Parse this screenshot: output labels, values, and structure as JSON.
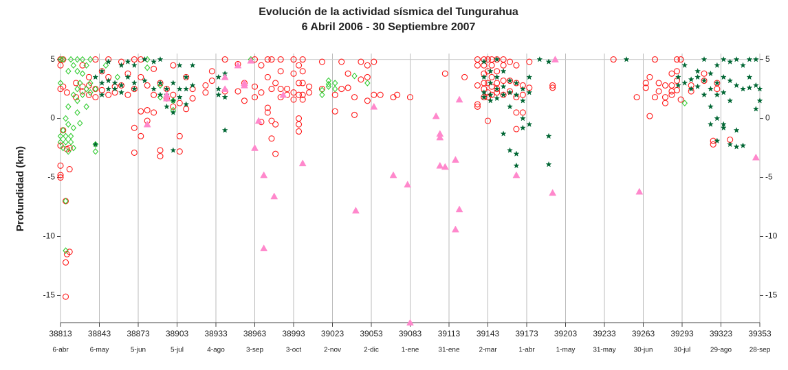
{
  "chart_data": {
    "type": "scatter",
    "title": "Evolución de la actividad sísmica del Tungurahua",
    "subtitle": "6 Abril 2006 - 30 Septiembre 2007",
    "ylabel": "Profundidad (km)",
    "xlim": [
      38813,
      39353
    ],
    "xticks": [
      38813,
      38843,
      38873,
      38903,
      38933,
      38963,
      38993,
      39023,
      39053,
      39083,
      39113,
      39143,
      39173,
      39203,
      39233,
      39263,
      39293,
      39323,
      39353
    ],
    "xtick_dates": [
      "6-abr",
      "6-may",
      "5-jun",
      "5-jul",
      "4-ago",
      "3-sep",
      "3-oct",
      "2-nov",
      "2-dic",
      "1-ene",
      "31-ene",
      "2-mar",
      "1-abr",
      "1-may",
      "31-may",
      "30-jun",
      "30-jul",
      "29-ago",
      "28-sep"
    ],
    "ylim": [
      -17.3,
      5.5
    ],
    "yticks": [
      5,
      0,
      -5,
      -10,
      -15
    ],
    "grid_x": true,
    "series": [
      {
        "color": "#ff1a1a",
        "marker": "circle",
        "x": [
          38813,
          38813,
          38813,
          38813,
          38813,
          38813,
          38813,
          38815,
          38815,
          38815,
          38817,
          38817,
          38817,
          38818,
          38818,
          38818,
          38820,
          38820,
          38820,
          38825,
          38825,
          38830,
          38830,
          38830,
          38835,
          38835,
          38835,
          38840,
          38840,
          38840,
          38845,
          38845,
          38850,
          38850,
          38850,
          38855,
          38855,
          38860,
          38860,
          38865,
          38865,
          38870,
          38870,
          38870,
          38870,
          38875,
          38875,
          38875,
          38875,
          38880,
          38880,
          38880,
          38885,
          38885,
          38885,
          38890,
          38890,
          38890,
          38895,
          38895,
          38900,
          38900,
          38900,
          38905,
          38905,
          38905,
          38910,
          38910,
          38915,
          38915,
          38925,
          38925,
          38930,
          38930,
          38940,
          38940,
          38950,
          38950,
          38955,
          38955,
          38963,
          38963,
          38963,
          38968,
          38968,
          38968,
          38973,
          38973,
          38973,
          38973,
          38976,
          38976,
          38976,
          38976,
          38979,
          38979,
          38979,
          38983,
          38983,
          38983,
          38983,
          38988,
          38988,
          38993,
          38993,
          38993,
          38993,
          38997,
          38997,
          38997,
          38997,
          38997,
          38997,
          39000,
          39000,
          39000,
          39000,
          39000,
          39005,
          39005,
          39015,
          39015,
          39025,
          39025,
          39030,
          39030,
          39035,
          39035,
          39040,
          39040,
          39045,
          39045,
          39050,
          39050,
          39050,
          39055,
          39055,
          39060,
          39070,
          39073,
          39083,
          39110,
          39125,
          39135,
          39135,
          39135,
          39135,
          39135,
          39140,
          39140,
          39140,
          39140,
          39140,
          39140,
          39143,
          39143,
          39143,
          39143,
          39143,
          39143,
          39146,
          39146,
          39146,
          39146,
          39146,
          39150,
          39150,
          39150,
          39150,
          39150,
          39155,
          39155,
          39155,
          39155,
          39160,
          39160,
          39160,
          39165,
          39165,
          39165,
          39165,
          39165,
          39170,
          39170,
          39170,
          39175,
          39175,
          39193,
          39193,
          39240,
          39258,
          39265,
          39265,
          39268,
          39268,
          39272,
          39272,
          39275,
          39275,
          39280,
          39280,
          39280,
          39285,
          39285,
          39285,
          39285,
          39289,
          39289,
          39289,
          39289,
          39292,
          39292,
          39300,
          39300,
          39310,
          39310,
          39317,
          39317,
          39320,
          39320,
          39330
        ],
        "values": [
          5,
          4.5,
          2.5,
          -4,
          -5,
          -4.8,
          -2.3,
          5,
          2.7,
          -1,
          -7,
          -12.2,
          -15.1,
          -11.5,
          2.2,
          -2.6,
          -2.5,
          -4.3,
          -11.3,
          3,
          1.8,
          2.7,
          2.3,
          4.5,
          2,
          3.5,
          2.8,
          5,
          2.5,
          1.8,
          4,
          2.4,
          5,
          3.5,
          2,
          2.7,
          2.2,
          4.8,
          2.8,
          3.8,
          2,
          5,
          2.5,
          -2.9,
          -0.8,
          5,
          3.5,
          -1.5,
          0.6,
          2.8,
          0.7,
          -0.2,
          4.2,
          2,
          0.5,
          -2.7,
          -3.2,
          3,
          2.5,
          1.7,
          1,
          2,
          4.5,
          -1.5,
          -2.8,
          1.3,
          0.8,
          3.5,
          2.5,
          1.7,
          2.2,
          2.8,
          4,
          3.2,
          5,
          2.3,
          4.6,
          2.3,
          3,
          1.5,
          5,
          2.7,
          1.8,
          4.5,
          -0.3,
          2.2,
          5,
          3.5,
          0.5,
          0.9,
          5,
          2.5,
          -0.2,
          -1.7,
          3,
          -0.5,
          -3,
          5,
          4,
          2.5,
          1.8,
          2.5,
          2,
          5,
          3.8,
          2.2,
          1.6,
          4.5,
          3,
          2,
          0,
          -0.5,
          -1.1,
          5,
          4,
          3,
          2,
          1.6,
          2.7,
          2.2,
          2.5,
          4.8,
          2,
          0.6,
          4.8,
          2.5,
          3.8,
          2.6,
          0.3,
          1.8,
          3.3,
          4.8,
          4.5,
          3.5,
          1.5,
          4.8,
          2,
          2,
          1.8,
          2,
          1.8,
          3.8,
          3.5,
          5,
          4.5,
          2.8,
          1.2,
          1,
          5,
          4.5,
          3.8,
          3,
          2.5,
          1.8,
          5,
          4,
          3,
          2.2,
          1.8,
          -0.2,
          5,
          4.5,
          3.5,
          2.7,
          2,
          5,
          4,
          3,
          2.5,
          2.2,
          5,
          4.5,
          3.2,
          2,
          4.8,
          3.2,
          2.3,
          4.5,
          3,
          1.8,
          0.5,
          -0.9,
          2.8,
          2,
          0.5,
          4.8,
          2.6,
          2.8,
          2.6,
          5,
          1.8,
          3,
          2.6,
          0.2,
          3.5,
          5,
          1.8,
          3,
          2.3,
          1.3,
          1.8,
          2.8,
          3.8,
          2.8,
          2.3,
          2,
          5,
          4,
          3.2,
          2.4,
          5,
          1.6,
          2.8,
          2.3,
          3.8,
          3.2,
          -2.2,
          -1.9,
          2.5,
          3,
          -1.8
        ]
      },
      {
        "color": "#33cc33",
        "marker": "diamond",
        "x": [
          38813,
          38813,
          38813,
          38813,
          38815,
          38815,
          38815,
          38817,
          38817,
          38817,
          38817,
          38817,
          38819,
          38819,
          38819,
          38819,
          38821,
          38821,
          38821,
          38823,
          38823,
          38823,
          38823,
          38826,
          38826,
          38826,
          38826,
          38826,
          38828,
          38828,
          38830,
          38830,
          38830,
          38833,
          38833,
          38833,
          38836,
          38836,
          38836,
          38840,
          38840,
          38840,
          38848,
          38857,
          38880,
          38880,
          38890,
          38890,
          38900,
          38900,
          38960,
          39015,
          39015,
          39020,
          39020,
          39020,
          39025,
          39025,
          39040,
          39050,
          39295
        ],
        "values": [
          5,
          3,
          -1.5,
          -2,
          5,
          -1,
          -2.5,
          0,
          -1.5,
          -2,
          -7,
          -11.2,
          4,
          1,
          -0.5,
          -2.8,
          5,
          -1.5,
          -2,
          4.5,
          2,
          -0.8,
          -2.5,
          5,
          4,
          2.5,
          1.5,
          0.5,
          3,
          -0.4,
          5,
          3.8,
          2,
          4.5,
          2.5,
          1,
          5,
          3,
          2.2,
          2.5,
          -2.8,
          -2.2,
          4.5,
          3.5,
          5,
          4.3,
          2.8,
          1.8,
          0.7,
          1.5,
          5,
          2,
          2.4,
          2.7,
          2.9,
          3.2,
          2.5,
          3,
          3.6,
          3,
          1.3
        ]
      },
      {
        "color": "#006633",
        "marker": "star",
        "x": [
          38840,
          38840,
          38845,
          38845,
          38845,
          38850,
          38850,
          38850,
          38855,
          38855,
          38860,
          38860,
          38860,
          38865,
          38865,
          38870,
          38870,
          38870,
          38878,
          38878,
          38885,
          38885,
          38890,
          38890,
          38890,
          38895,
          38895,
          38895,
          38900,
          38900,
          38900,
          38900,
          38905,
          38905,
          38905,
          38910,
          38910,
          38910,
          38915,
          38915,
          38935,
          38935,
          38935,
          38940,
          38940,
          38940,
          39140,
          39140,
          39140,
          39140,
          39145,
          39145,
          39145,
          39145,
          39150,
          39150,
          39150,
          39150,
          39155,
          39155,
          39155,
          39155,
          39160,
          39160,
          39160,
          39160,
          39165,
          39165,
          39165,
          39165,
          39170,
          39170,
          39170,
          39170,
          39175,
          39175,
          39175,
          39183,
          39190,
          39190,
          39190,
          39250,
          39290,
          39290,
          39295,
          39295,
          39300,
          39300,
          39305,
          39305,
          39305,
          39310,
          39310,
          39310,
          39315,
          39315,
          39315,
          39315,
          39320,
          39320,
          39320,
          39320,
          39320,
          39325,
          39325,
          39325,
          39325,
          39325,
          39330,
          39330,
          39330,
          39330,
          39335,
          39335,
          39335,
          39335,
          39340,
          39340,
          39340,
          39345,
          39345,
          39345,
          39350,
          39350,
          39350,
          39353,
          39353
        ],
        "values": [
          -2.2,
          3.5,
          2,
          3,
          4,
          4.8,
          3.2,
          2.5,
          3,
          2.5,
          4.5,
          2.2,
          2.8,
          3.5,
          4.8,
          4.5,
          3,
          2.5,
          5,
          3.2,
          4.8,
          2.5,
          5,
          3,
          2,
          2.5,
          1,
          2,
          3,
          1.5,
          -2.7,
          0.5,
          2.5,
          4.5,
          1.8,
          3.5,
          2.5,
          1.2,
          4.5,
          2.8,
          3.5,
          2.5,
          2,
          3.8,
          -1,
          1.8,
          4.8,
          3.5,
          2.2,
          1.8,
          4,
          3,
          2,
          1.5,
          3.5,
          2.5,
          1.7,
          5,
          4,
          2.7,
          2,
          -1.3,
          3.2,
          2.2,
          1,
          -2.7,
          3,
          2,
          -3,
          -4,
          2.5,
          1.5,
          0,
          -0.8,
          3.5,
          -0.5,
          2.2,
          5,
          4.8,
          -1.5,
          -3.9,
          5,
          3.5,
          2.8,
          4.5,
          3,
          3.3,
          2.5,
          4,
          2.7,
          3.5,
          3.2,
          2,
          5,
          3.8,
          2.5,
          1,
          -0.5,
          4.5,
          3,
          2,
          -1.9,
          0,
          5,
          3.5,
          2.2,
          -0.8,
          -0.5,
          4.8,
          3.2,
          1.5,
          -2.2,
          5,
          2.8,
          -2.4,
          -1,
          4.5,
          2.5,
          -2.3,
          3.5,
          2.6,
          5,
          2.8,
          0.8,
          5,
          2.5,
          1.5
        ]
      },
      {
        "color": "#ff88cc",
        "marker": "triangle",
        "x": [
          38880,
          38895,
          38895,
          38940,
          38940,
          38950,
          38955,
          38955,
          38960,
          38963,
          38966,
          38970,
          38970,
          38978,
          38985,
          39000,
          39041,
          39055,
          39070,
          39081,
          39083,
          39103,
          39106,
          39106,
          39106,
          39110,
          39118,
          39118,
          39121,
          39121,
          39165,
          39193,
          39195,
          39260,
          39350
        ],
        "values": [
          -0.5,
          2,
          1.7,
          3.5,
          2.5,
          4.5,
          3,
          2.8,
          4.9,
          -2.5,
          -0.2,
          -4.8,
          -11,
          -6.6,
          2,
          -3.8,
          -7.8,
          1,
          -4.8,
          -5.6,
          -17.3,
          0.2,
          -1.6,
          -1.3,
          -4,
          -4.1,
          -3.5,
          -9.4,
          -7.7,
          1.6,
          -4.8,
          -6.3,
          5,
          -6.2,
          -3.3
        ]
      }
    ]
  }
}
